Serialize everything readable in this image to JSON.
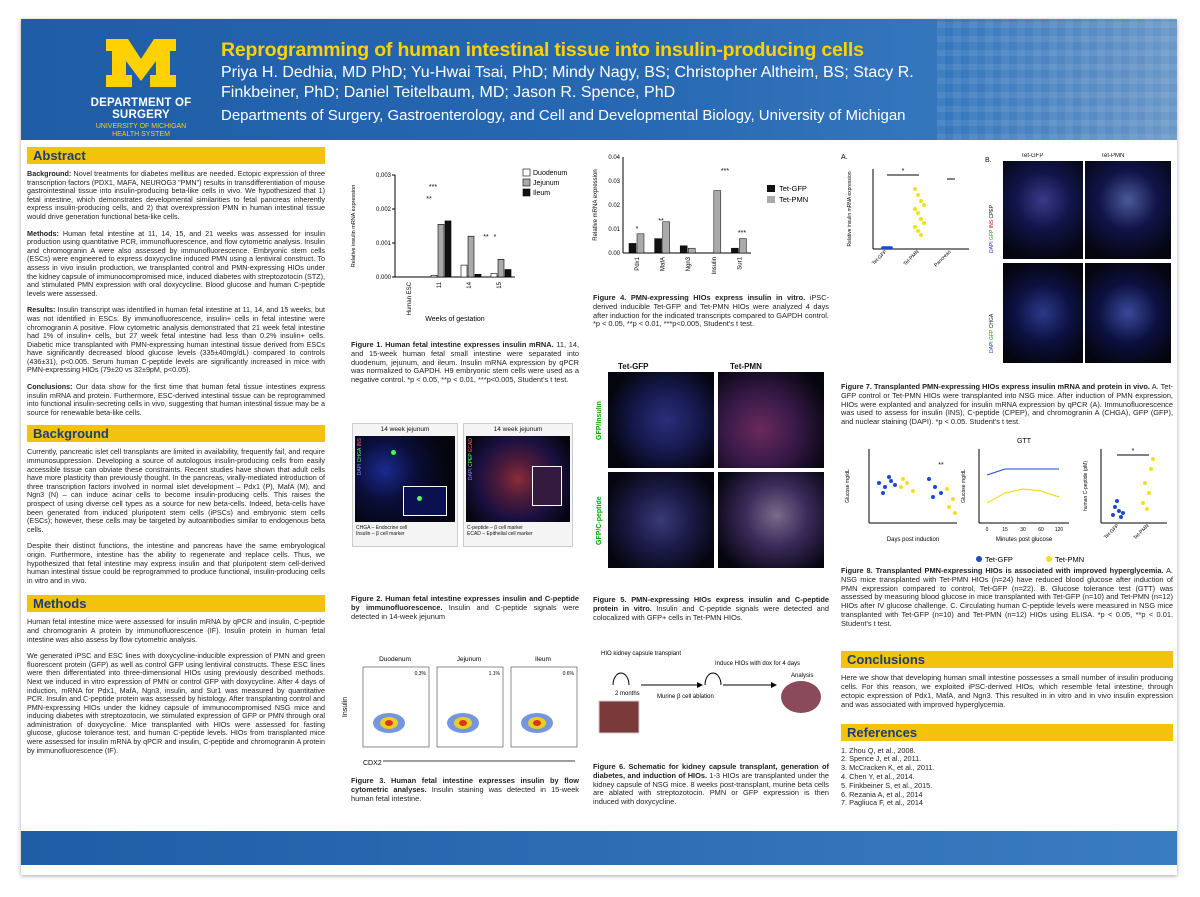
{
  "header": {
    "dept": "DEPARTMENT OF SURGERY",
    "dept_sub1": "UNIVERSITY OF MICHIGAN",
    "dept_sub2": "HEALTH SYSTEM",
    "title": "Reprogramming of human intestinal tissue into insulin-producing cells",
    "authors": "Priya H. Dedhia, MD PhD; Yu-Hwai Tsai, PhD; Mindy Nagy, BS; Christopher Altheim, BS; Stacy R. Finkbeiner, PhD; Daniel Teitelbaum, MD; Jason R. Spence, PhD",
    "affiliation": "Departments of Surgery, Gastroenterology, and Cell and Developmental Biology, University of Michigan"
  },
  "abstract": {
    "heading": "Abstract",
    "bg_label": "Background:",
    "bg_text": "Novel treatments for diabetes mellitus are needed. Ectopic expression of three transcription factors (PDX1, MAFA, NEUROG3 \"PMN\") results in transdifferentiation of mouse gastrointestinal tissue into insulin-producing beta-like cells in vivo. We hypothesized that 1) fetal intestine, which demonstrates developmental similarities to fetal pancreas inherently express insulin-producing cells, and 2) that overexpression PMN in human intestinal tissue would drive generation functional beta-like cells.",
    "methods_label": "Methods:",
    "methods_text": "Human fetal intestine at 11, 14, 15, and 21 weeks was assessed for insulin production using quantitative PCR, immunofluorescence, and flow cytometric analysis. Insulin and chromogranin A were also assessed by immunofluorescence. Embryonic stem cells (ESCs) were engineered to express doxycycline induced PMN using a lentiviral construct. To assess in vivo insulin production, we transplanted control and PMN-expressing HIOs under the kidney capsule of immunocompromised mice, induced diabetes with streptozotocin (STZ), and stimulated PMN expression with oral doxycycline. Blood glucose and human C-peptide levels were assessed.",
    "results_label": "Results:",
    "results_text": "Insulin transcript was identified in human fetal intestine at 11, 14, and 15 weeks, but was not identified in ESCs. By immunofluorescence, insulin+ cells in fetal intestine were chromogranin A positive. Flow cytometric analysis demonstrated that 21 week fetal intestine had 1% of insulin+ cells, but 27 week fetal intestine had less than 0.2% insulin+ cells. Diabetic mice transplanted with PMN-expressing human intestinal tissue derived from ESCs have significantly decreased blood glucose levels (335±40mg/dL) compared to controls (436±31), p<0.005. Serum human C-peptide levels are significantly increased in mice with PMN-expressing HIOs (79±20 vs 32±9pM, p<0.05).",
    "conclusions_label": "Conclusions:",
    "conclusions_text": "Our data show for the first time that human fetal tissue intestines express insulin mRNA and protein. Furthermore, ESC-derived intestinal tissue can be reprogrammed into functional insulin-secreting cells in vivo, suggesting that human intestinal tissue may be a source for renewable beta-like cells."
  },
  "background": {
    "heading": "Background",
    "p1": "Currently, pancreatic islet cell transplants are limited in availability, frequently fail, and require immunosuppression. Developing a source of autologous insulin-producing cells from easily accessible tissue can obviate these constraints. Recent studies have shown that adult cells have more plasticity than previously thought. In the pancreas, virally-mediated introduction of three transcription factors involved in normal islet development – Pdx1 (P), MafA (M), and Ngn3 (N) – can induce acinar cells to become insulin-producing cells. This raises the prospect of using diverse cell types as a source for new beta-cells. Indeed, beta-cells have been generated from induced pluripotent stem cells (iPSCs) and embryonic stem cells (ESCs); however, these cells may be targeted by autoantibodies similar to endogenous beta cells.",
    "p2": "Despite their distinct functions, the intestine and pancreas have the same embryological origin. Furthermore, intestine has the ability to regenerate and replace cells. Thus, we hypothesized that fetal intestine may express insulin and that pluripotent stem cell-derived human intestinal tissue could be reprogrammed to produce functional, insulin-producing cells in vitro and in vivo."
  },
  "methods": {
    "heading": "Methods",
    "p1": "Human fetal intestine mice were assessed for insulin mRNA by qPCR and insulin, C-peptide and chromogranin A protein by immunofluorescence (IF). Insulin protein in human fetal intestine was also assess by flow cytometric analysis.",
    "p2": "We generated iPSC and ESC lines with doxycycline-inducible expression of PMN and green fluorescent protein (GFP) as well as control GFP using lentiviral constructs. These ESC lines were then differentiated into three-dimensional HIOs using previously described methods. Next we induced in vitro expression of PMN or control GFP with doxycycline. After 4 days of induction, mRNA for Pdx1, MafA, Ngn3, insulin, and Sur1 was measured by quantitative PCR. Insulin and C-peptide protein was assessed by histology. After transplanting control and PMN-expressing HIOs under the kidney capsule of immunocompromised NSG mice and inducing diabetes with streptozotocin, we stimulated expression of GFP or PMN through oral administration of doxycycline. Mice transplanted with HIOs were assessed for fasting glucose, glucose tolerance test, and human C-peptide levels. HIOs from transplanted mice were assessed for insulin mRNA by qPCR and insulin, C-peptide and chromogranin A protein by immunofluorescence (IF)."
  },
  "fig1": {
    "ylabel": "Relative insulin mRNA expression",
    "xlabel": "Weeks of gestation",
    "yticks": [
      "0.003",
      "0.002",
      "0.001",
      "0.000"
    ],
    "legend": [
      "Duodenum",
      "Jejunum",
      "Ileum"
    ],
    "stars": [
      "***",
      "**",
      "**",
      "*"
    ],
    "caption_b": "Figure 1. Human fetal intestine expresses insulin mRNA.",
    "caption": " 11, 14, and 15-week human fetal small intestine were separated into duodenum, jejunum, and ileum. Insulin mRNA expression by qPCR was normalized to GAPDH. H9 embryonic stem cells were used as a negative control. *p < 0.05, **p < 0.01, ***p<0.005, Student's t test."
  },
  "chart_data": [
    {
      "type": "bar",
      "categories": [
        "Human ESC",
        "11",
        "14",
        "15"
      ],
      "series": [
        {
          "name": "Duodenum",
          "values": [
            0.0,
            5e-05,
            0.00035,
            0.0001
          ]
        },
        {
          "name": "Jejunum",
          "values": [
            0.0,
            0.00155,
            0.0012,
            0.00052
          ]
        },
        {
          "name": "Ileum",
          "values": [
            0.0,
            0.00165,
            8e-05,
            0.00022
          ]
        }
      ],
      "xlabel": "Weeks of gestation",
      "ylabel": "Relative insulin mRNA expression",
      "ylim": [
        0,
        0.003
      ]
    },
    {
      "type": "bar",
      "categories": [
        "Pdx1",
        "MafA",
        "Ngn3",
        "Insulin",
        "Sur1"
      ],
      "series": [
        {
          "name": "Tet-GFP",
          "values": [
            0.004,
            0.006,
            0.003,
            0.0,
            0.002
          ]
        },
        {
          "name": "Tet-PMN",
          "values": [
            0.008,
            0.013,
            0.002,
            0.026,
            0.006
          ]
        }
      ],
      "ylabel": "Relative mRNA expression",
      "ylim": [
        0,
        0.04
      ]
    }
  ],
  "fig2": {
    "panel_title": "14 week jejunum",
    "ch1": [
      "DAPI",
      "CHGA",
      "INS"
    ],
    "ch2": [
      "DAPI",
      "CPEP",
      "ECAD"
    ],
    "legend1": [
      "CHGA – Endocrine cell",
      "Insulin – β cell marker"
    ],
    "legend2": [
      "C-peptide – β cell marker",
      "ECAD – Epithelial cell marker"
    ],
    "caption_b": "Figure 2. Human fetal intestine expresses insulin and C-peptide by immunofluorescence.",
    "caption": " Insulin and C-peptide signals were detected in 14-week jejunum"
  },
  "fig3": {
    "panels": [
      "Duodenum",
      "Jejunum",
      "Ileum"
    ],
    "pcts": [
      "0.3%",
      "1.1%",
      "0.6%"
    ],
    "ylabel": "Insulin",
    "xlabel": "CDX2",
    "caption_b": "Figure 3. Human fetal intestine expresses insulin by flow cytometric analyses.",
    "caption": " Insulin staining was detected in 15-week human fetal intestine."
  },
  "fig4": {
    "ylabel": "Relative mRNA expression",
    "yticks": [
      "0.04",
      "0.03",
      "0.02",
      "0.01",
      "0.00"
    ],
    "legend": [
      "Tet-GFP",
      "Tet-PMN"
    ],
    "stars": [
      "*",
      "**",
      "***",
      "***"
    ],
    "caption_b": "Figure 4. PMN-expressing HIOs express insulin in vitro.",
    "caption": " iPSC-derived inducible Tet-GFP and Tet-PMN HIOs were analyzed 4 days after induction for the indicated transcripts compared to GAPDH control. *p < 0.05, **p < 0.01, ***p<0.005, Student's t test."
  },
  "fig5": {
    "col1": "Tet-GFP",
    "col2": "Tet-PMN",
    "row1": "GFP/Insulin",
    "row2": "GFP/C-peptide",
    "caption_b": "Figure 5. PMN-expressing HIOs express insulin and C-peptide protein in vitro.",
    "caption": " Insulin and C-peptide signals were detected and colocalized with GFP+ cells in Tet-PMN HIOs."
  },
  "fig6": {
    "label1": "HIO kidney capsule transplant",
    "label2": "2 months",
    "label3": "Murine β cell ablation",
    "label4": "Induce HIOs with dox for 4 days",
    "label5": "Analysis",
    "caption_b": "Figure 6. Schematic for kidney capsule transplant, generation of diabetes, and induction of HIOs.",
    "caption": " 1-3 HIOs are transplanted under the kidney capsule of NSG mice. 8 weeks post-transplant, murine beta cells are ablated with streptozotocin. PMN or GFP expression is then induced with doxycycline."
  },
  "fig7": {
    "a": "A.",
    "b": "B.",
    "ylabel": "Relative insulin mRNA expression",
    "xcats": [
      "Tet-GFP",
      "Tet-PMN",
      "Pancreas"
    ],
    "star": "*",
    "col1": "Tet-GFP",
    "col2": "Tet-PMN",
    "row1": [
      "DAPI",
      "GFP",
      "INS",
      "CPEP"
    ],
    "row2": [
      "DAPI",
      "GFP",
      "CHGA"
    ],
    "caption_b": "Figure 7. Transplanted PMN-expressing HIOs express insulin mRNA and protein in vivo.",
    "caption": " A. Tet-GFP control or Tet-PMN HIOs were transplanted into NSG mice. After induction of PMN expression, HIOs were explanted and analyzed for insulin mRNA expression by qPCR (A). Immunofluorescence was used to assess for insulin (INS), C-peptide (CPEP), and chromogranin A (CHGA), GFP (GFP), and nuclear staining (DAPI). *p < 0.05. Student's t test."
  },
  "fig8": {
    "ylabel1": "Glucose mg/dL",
    "xlabel1": "Days post induction",
    "gtt_title": "GTT",
    "ylabel2": "Glucose mg/dL",
    "xlabel2": "Minutes post glucose",
    "gtt_x": [
      "0",
      "15",
      "30",
      "60",
      "120"
    ],
    "ylabel3": "human C-peptide (pM)",
    "xcats3": [
      "Tet-GFP",
      "Tet-PMN"
    ],
    "star1": "**",
    "star3": "*",
    "legend": [
      "Tet-GFP",
      "Tet-PMN"
    ],
    "caption_b": "Figure 8. Transplanted PMN-expressing HIOs is associated with improved hyperglycemia.",
    "caption": " A. NSG mice transplanted with Tet-PMN HIOs (n=24) have reduced blood glucose after induction of PMN expression compared to control, Tet-GFP (n=22). B. Glucose tolerance test (GTT) was assessed by measuring blood glucose in mice transplanted with Tet-GFP (n=10) and Tet-PMN (n=12) HIOs after IV glucose challenge. C. Circulating human C-peptide levels were measured in NSG mice transplanted with Tet-GFP (n=10) and Tet-PMN (n=12) HIOs using ELISA. *p < 0.05, **p < 0.01. Student's t test."
  },
  "conclusions": {
    "heading": "Conclusions",
    "text": "Here we show that developing human small intestine possesses a small number of insulin producing cells. For this reason, we exploited iPSC-derived HIOs, which resemble fetal intestine, through ectopic expression of Pdx1, MafA, and Ngn3. This resulted in in vitro and in vivo insulin expression and was associated with improved hyperglycemia."
  },
  "references": {
    "heading": "References",
    "items": [
      "1.  Zhou Q, et al., 2008.",
      "2.  Spence J, et al., 2011.",
      "3.  McCracken K, et al., 2011.",
      "4.  Chen Y, et al., 2014.",
      "5.  Finkbeiner S, et al., 2015.",
      "6.  Rezania A, et al., 2014",
      "7.  Pagliuca F, et al., 2014"
    ]
  },
  "colors": {
    "blue": "#1f5da6",
    "maize": "#f2c20d"
  }
}
